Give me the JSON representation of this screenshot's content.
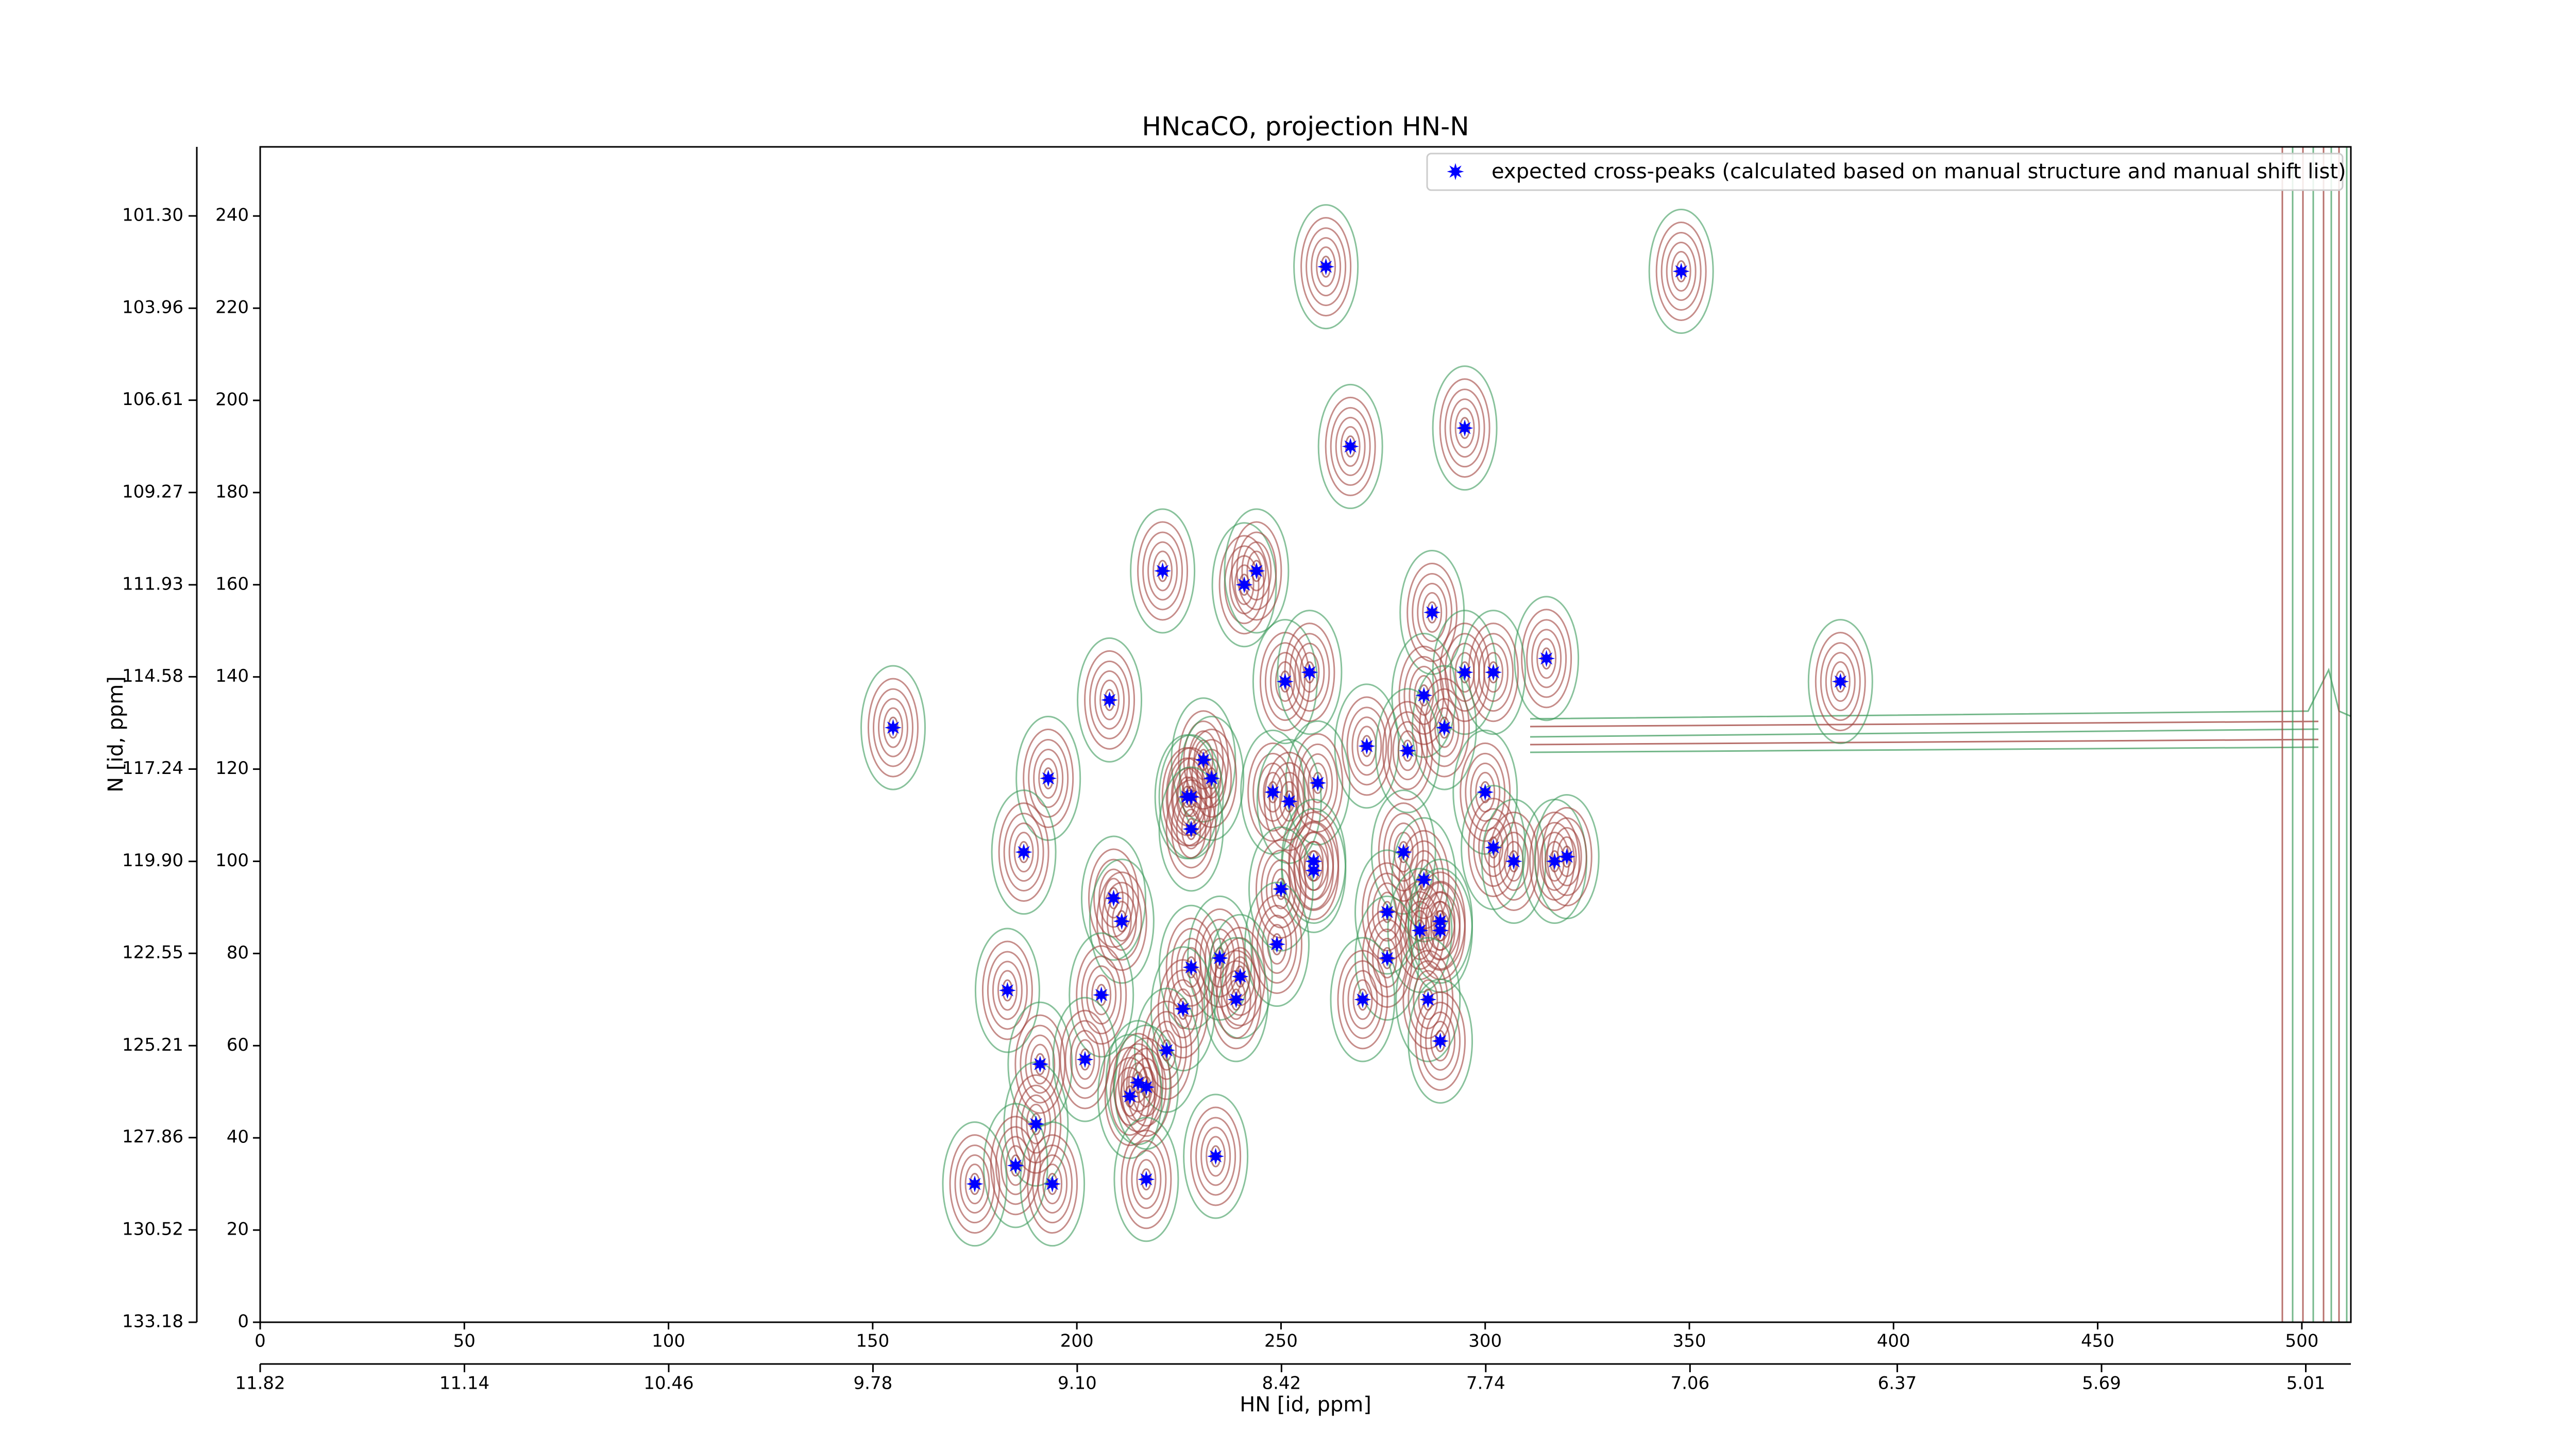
{
  "chart_data": {
    "type": "scatter",
    "title": "HNcaCO, projection HN-N",
    "xlabel": "HN [id, ppm]",
    "ylabel": "N [id, ppm]",
    "xlim": [
      0,
      512
    ],
    "ylim": [
      0,
      255
    ],
    "xticks": [
      0,
      50,
      100,
      150,
      200,
      250,
      300,
      350,
      400,
      450,
      500
    ],
    "yticks": [
      0,
      20,
      40,
      60,
      80,
      100,
      120,
      140,
      160,
      180,
      200,
      220,
      240
    ],
    "x2lim": [
      11.82,
      4.86
    ],
    "x2ticks": [
      11.82,
      11.14,
      10.46,
      9.78,
      {
        "value": 9.1,
        "label": "9.10"
      },
      8.42,
      7.74,
      7.06,
      6.37,
      5.69,
      5.01
    ],
    "y2lim": [
      133.18,
      99.31
    ],
    "y2ticks": [
      133.18,
      130.52,
      127.86,
      125.21,
      122.55,
      {
        "value": 119.9,
        "label": "119.90"
      },
      117.24,
      114.58,
      111.93,
      109.27,
      106.61,
      103.96,
      {
        "value": 101.3,
        "label": "101.30"
      }
    ],
    "legend": "upper right",
    "series": [
      {
        "name": "expected cross-peaks (calculated based on manual structure and manual shift list)",
        "color": "#0000ff",
        "x": [
          261,
          348,
          295,
          267,
          221,
          241,
          244,
          287,
          315,
          251,
          257,
          295,
          302,
          387,
          285,
          208,
          155,
          290,
          271,
          281,
          231,
          193,
          233,
          259,
          228,
          227,
          248,
          252,
          300,
          228,
          302,
          187,
          280,
          307,
          317,
          320,
          258,
          258,
          285,
          250,
          276,
          209,
          211,
          284,
          289,
          289,
          249,
          235,
          228,
          276,
          240,
          183,
          206,
          239,
          270,
          286,
          226,
          289,
          222,
          191,
          202,
          215,
          217,
          213,
          190,
          185,
          234,
          194,
          217,
          175
        ],
        "y": [
          229,
          228,
          194,
          190,
          163,
          160,
          163,
          154,
          144,
          139,
          141,
          141,
          141,
          139,
          136,
          135,
          129,
          129,
          125,
          124,
          122,
          118,
          118,
          117,
          114,
          114,
          115,
          113,
          115,
          107,
          103,
          102,
          102,
          100,
          100,
          101,
          100,
          98,
          96,
          94,
          89,
          92,
          87,
          85,
          87,
          85,
          82,
          79,
          77,
          79,
          75,
          72,
          71,
          70,
          70,
          70,
          68,
          61,
          59,
          56,
          57,
          52,
          51,
          49,
          43,
          34,
          36,
          30,
          31,
          30
        ]
      }
    ]
  }
}
